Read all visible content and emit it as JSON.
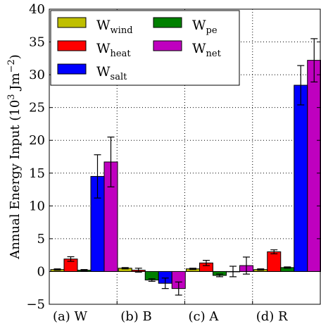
{
  "chart_data": {
    "type": "bar",
    "ylabel": "Annual Energy Input (10",
    "ylabel_sup": "3",
    "ylabel_unit": " Jm",
    "ylabel_unit_sup": "−2",
    "ylabel_tail": ")",
    "ylim": [
      -5,
      40
    ],
    "yticks": [
      "−5",
      "0",
      "5",
      "10",
      "15",
      "20",
      "25",
      "30",
      "35",
      "40"
    ],
    "ytick_values": [
      -5,
      0,
      5,
      10,
      15,
      20,
      25,
      30,
      35,
      40
    ],
    "categories": [
      "(a) W",
      "(b) B",
      "(c) A",
      "(d) R"
    ],
    "grid": true,
    "legend_position": "top-left",
    "series": [
      {
        "name_main": "W",
        "name_sub": "wind",
        "color": "#bfbf00",
        "values": [
          0.3,
          0.5,
          0.4,
          0.3
        ],
        "errors": [
          0.1,
          0.1,
          0.1,
          0.1
        ]
      },
      {
        "name_main": "W",
        "name_sub": "heat",
        "color": "#ff0000",
        "values": [
          1.9,
          0.2,
          1.3,
          3.0
        ],
        "errors": [
          0.35,
          0.3,
          0.4,
          0.3
        ]
      },
      {
        "name_main": "W",
        "name_sub": "pe",
        "color": "#008000",
        "values": [
          0.2,
          -1.3,
          -0.6,
          0.6
        ],
        "errors": [
          0.1,
          0.2,
          0.2,
          0.1
        ]
      },
      {
        "name_main": "W",
        "name_sub": "salt",
        "color": "#0000ff",
        "values": [
          14.5,
          -1.8,
          0.0,
          28.4
        ],
        "errors": [
          3.3,
          0.8,
          0.8,
          3.0
        ]
      },
      {
        "name_main": "W",
        "name_sub": "net",
        "color": "#bf00bf",
        "values": [
          16.7,
          -2.6,
          0.9,
          32.2
        ],
        "errors": [
          3.8,
          1.0,
          1.3,
          3.3
        ]
      }
    ],
    "legend_order": [
      0,
      2,
      1,
      4,
      3
    ]
  }
}
